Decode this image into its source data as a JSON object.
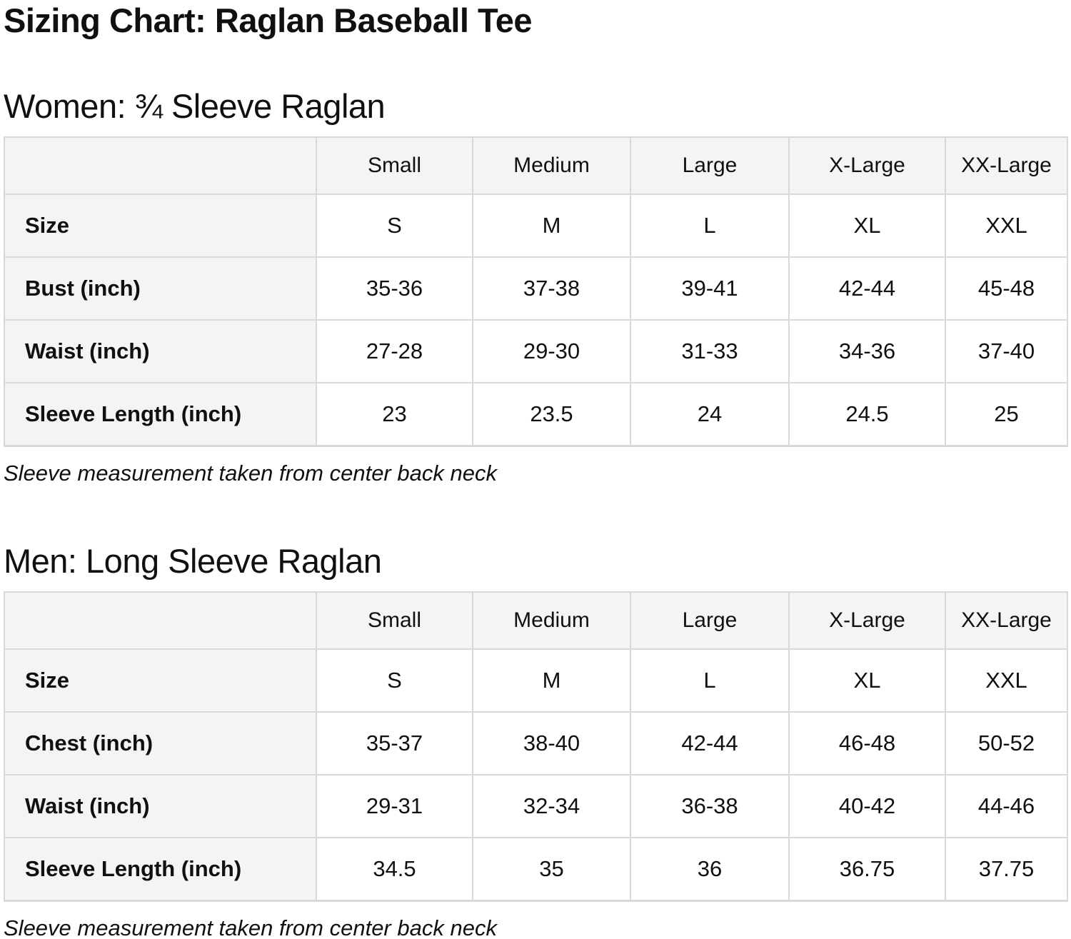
{
  "page": {
    "title": "Sizing Chart: Raglan Baseball Tee"
  },
  "colors": {
    "header_bg": "#f4f4f4",
    "cell_bg": "#ffffff",
    "border": "#d8d8d8",
    "text": "#0f1111"
  },
  "sections": [
    {
      "heading": "Women: ¾ Sleeve Raglan",
      "note": "Sleeve measurement taken from center back neck",
      "table": {
        "columns": [
          "",
          "Small",
          "Medium",
          "Large",
          "X-Large",
          "XX-Large"
        ],
        "rows": [
          {
            "label": "Size",
            "values": [
              "S",
              "M",
              "L",
              "XL",
              "XXL"
            ]
          },
          {
            "label": "Bust (inch)",
            "values": [
              "35-36",
              "37-38",
              "39-41",
              "42-44",
              "45-48"
            ]
          },
          {
            "label": "Waist (inch)",
            "values": [
              "27-28",
              "29-30",
              "31-33",
              "34-36",
              "37-40"
            ]
          },
          {
            "label": "Sleeve Length (inch)",
            "values": [
              "23",
              "23.5",
              "24",
              "24.5",
              "25"
            ]
          }
        ]
      }
    },
    {
      "heading": "Men: Long Sleeve Raglan",
      "note": "Sleeve measurement taken from center back neck",
      "table": {
        "columns": [
          "",
          "Small",
          "Medium",
          "Large",
          "X-Large",
          "XX-Large"
        ],
        "rows": [
          {
            "label": "Size",
            "values": [
              "S",
              "M",
              "L",
              "XL",
              "XXL"
            ]
          },
          {
            "label": "Chest (inch)",
            "values": [
              "35-37",
              "38-40",
              "42-44",
              "46-48",
              "50-52"
            ]
          },
          {
            "label": "Waist (inch)",
            "values": [
              "29-31",
              "32-34",
              "36-38",
              "40-42",
              "44-46"
            ]
          },
          {
            "label": "Sleeve Length (inch)",
            "values": [
              "34.5",
              "35",
              "36",
              "36.75",
              "37.75"
            ]
          }
        ]
      }
    }
  ]
}
